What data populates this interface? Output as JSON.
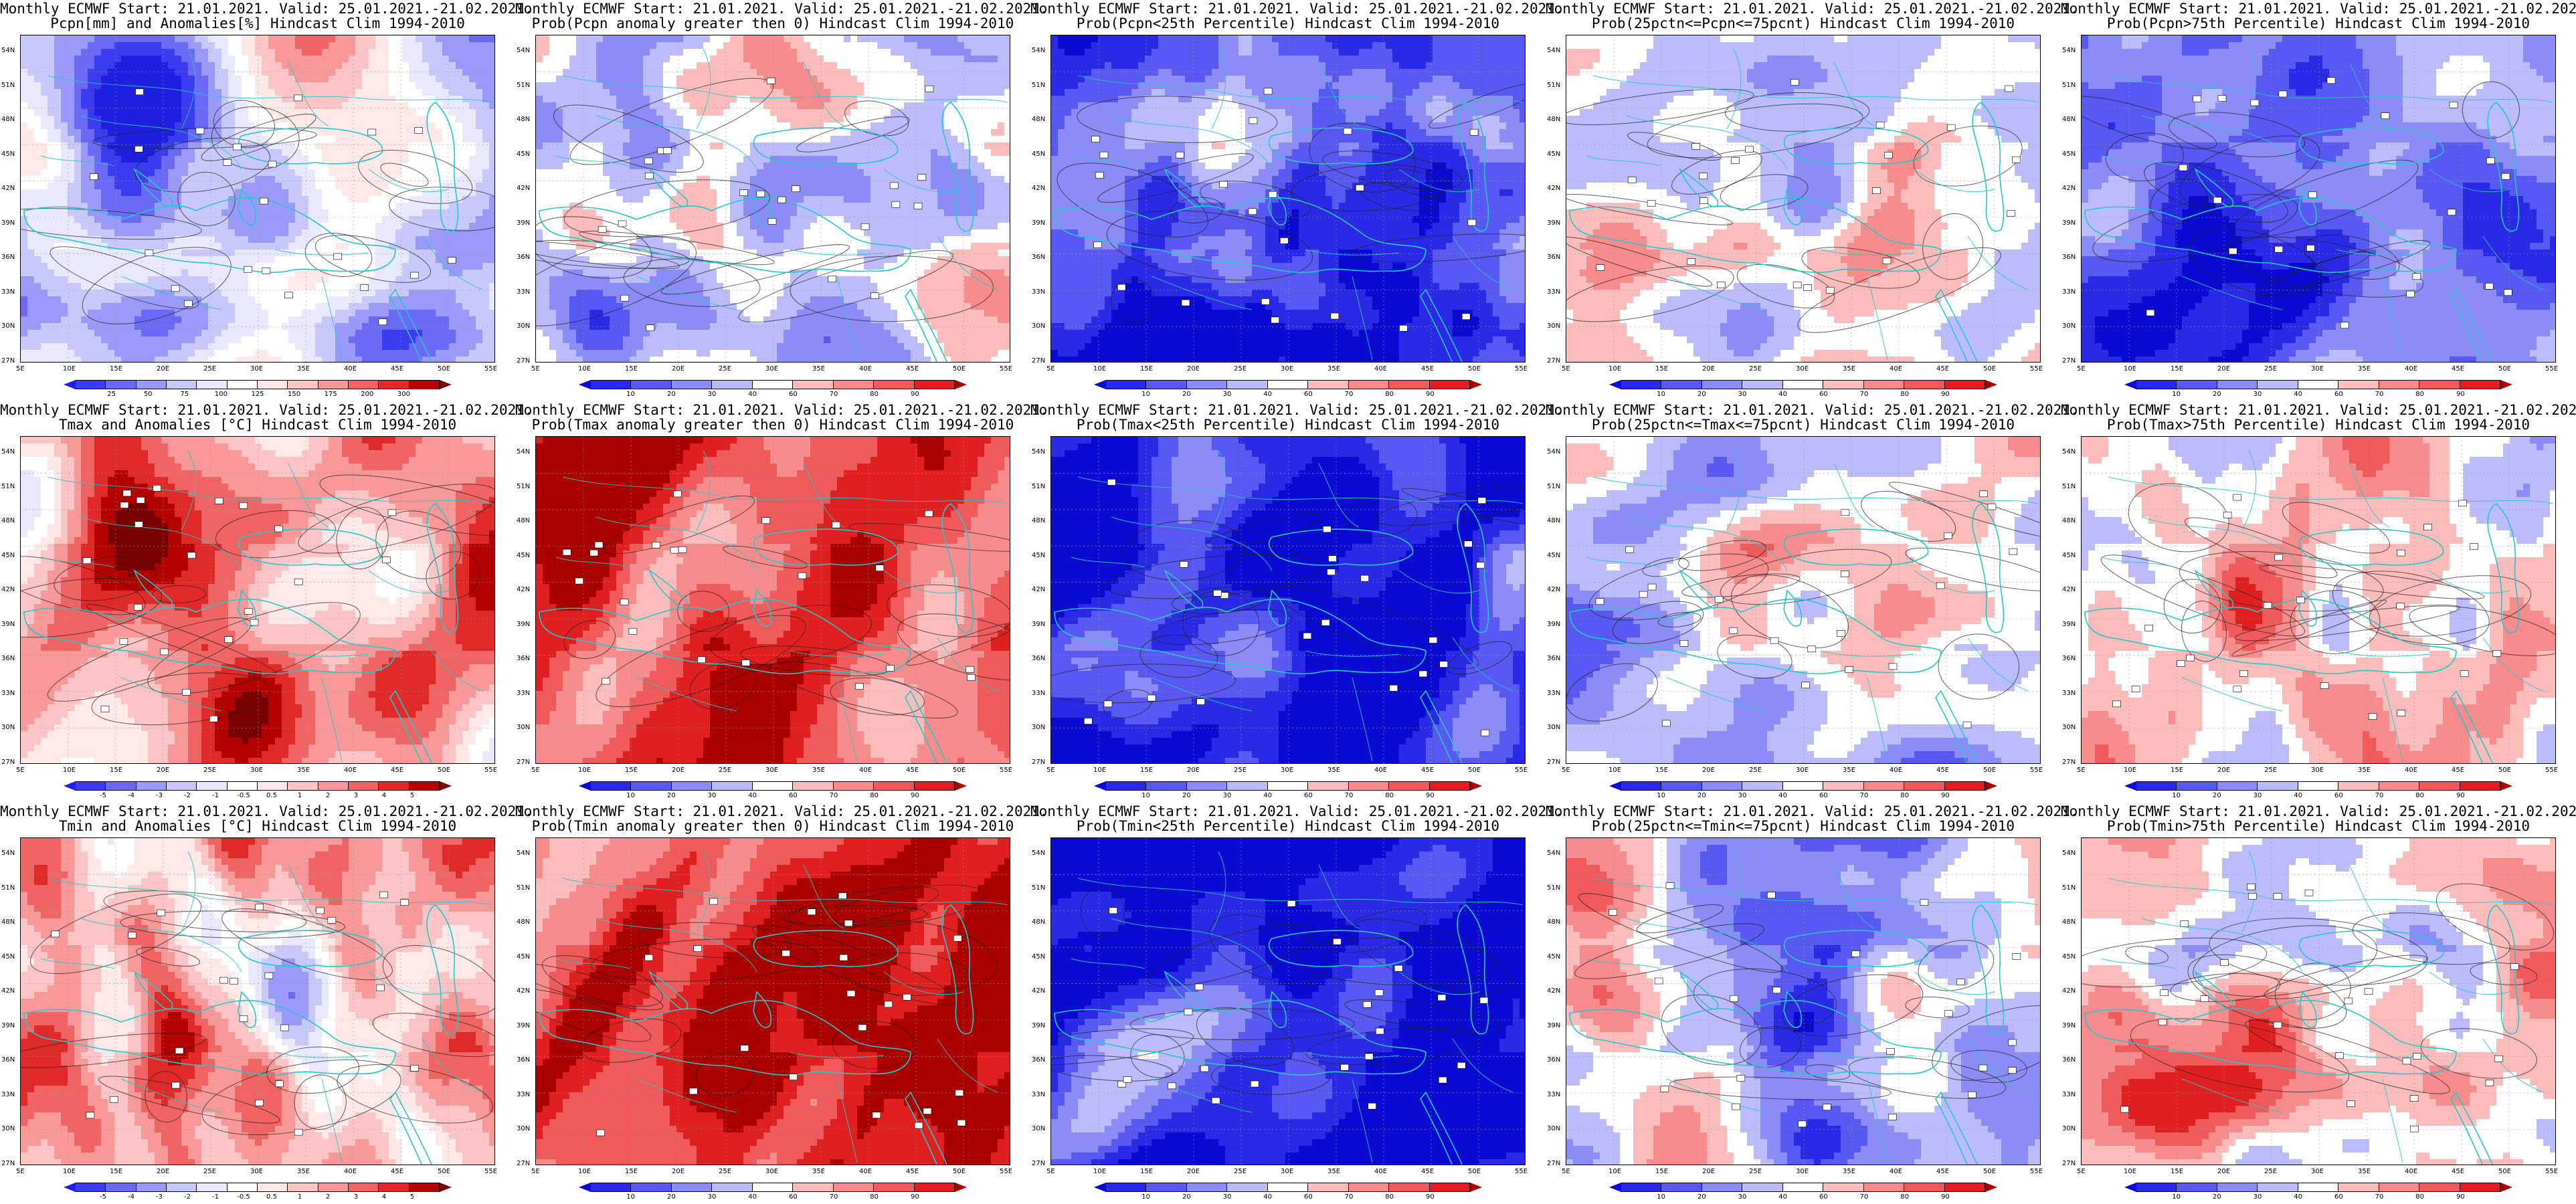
{
  "title_line1": "Monthly ECMWF Start: 21.01.2021. Valid: 25.01.2021.-21.02.2021.",
  "lat_labels": [
    "54N",
    "51N",
    "48N",
    "45N",
    "42N",
    "39N",
    "36N",
    "33N",
    "30N",
    "27N"
  ],
  "lon_labels": [
    "5E",
    "10E",
    "15E",
    "20E",
    "25E",
    "30E",
    "35E",
    "40E",
    "45E",
    "50E",
    "55E"
  ],
  "colors": {
    "anomaly": [
      "#1f1fe0",
      "#3b3bf0",
      "#6a6af6",
      "#9a9afa",
      "#c8c8fc",
      "#e8e8fe",
      "#ffffff",
      "#fee8e8",
      "#fcc4c4",
      "#f89898",
      "#f06464",
      "#e02a2a",
      "#b40000",
      "#780000"
    ],
    "probability": [
      "#0a0ad2",
      "#2a2ae6",
      "#5858f2",
      "#8c8cf8",
      "#bcbcfc",
      "#ffffff",
      "#fcbcbc",
      "#f88c8c",
      "#f05a5a",
      "#e02020",
      "#aa0000"
    ],
    "coast": "#24c8c8",
    "contour": "#202020"
  },
  "panels": [
    {
      "line2": "Pcpn[mm] and Anomalies[%] Hindcast Clim 1994-2010",
      "scale": "anomaly",
      "bias": -0.3,
      "ticks": [
        "25",
        "50",
        "75",
        "100",
        "125",
        "150",
        "175",
        "200",
        "300"
      ]
    },
    {
      "line2": "Prob(Pcpn anomaly greater then 0) Hindcast Clim 1994-2010",
      "scale": "probability",
      "bias": -0.1,
      "ticks": [
        "10",
        "20",
        "30",
        "40",
        "60",
        "70",
        "80",
        "90"
      ]
    },
    {
      "line2": "Prob(Pcpn<25th Percentile) Hindcast Clim 1994-2010",
      "scale": "probability",
      "bias": -0.6,
      "ticks": [
        "10",
        "20",
        "30",
        "40",
        "60",
        "70",
        "80",
        "90"
      ]
    },
    {
      "line2": "Prob(25pctn<=Pcpn<=75pcnt) Hindcast Clim 1994-2010",
      "scale": "probability",
      "bias": 0.05,
      "ticks": [
        "10",
        "20",
        "30",
        "40",
        "60",
        "70",
        "80",
        "90"
      ]
    },
    {
      "line2": "Prob(Pcpn>75th Percentile) Hindcast Clim 1994-2010",
      "scale": "probability",
      "bias": -0.45,
      "ticks": [
        "10",
        "20",
        "30",
        "40",
        "60",
        "70",
        "80",
        "90"
      ]
    },
    {
      "line2": "Tmax and Anomalies [°C] Hindcast Clim 1994-2010",
      "scale": "anomaly",
      "bias": 0.35,
      "ticks": [
        "-5",
        "-4",
        "-3",
        "-2",
        "-1",
        "-0.5",
        "0.5",
        "1",
        "2",
        "3",
        "4",
        "5"
      ]
    },
    {
      "line2": "Prob(Tmax anomaly greater then 0) Hindcast Clim 1994-2010",
      "scale": "probability",
      "bias": 0.55,
      "ticks": [
        "10",
        "20",
        "30",
        "40",
        "60",
        "70",
        "80",
        "90"
      ]
    },
    {
      "line2": "Prob(Tmax<25th Percentile) Hindcast Clim 1994-2010",
      "scale": "probability",
      "bias": -0.8,
      "ticks": [
        "10",
        "20",
        "30",
        "40",
        "60",
        "70",
        "80",
        "90"
      ]
    },
    {
      "line2": "Prob(25pctn<=Tmax<=75pcnt) Hindcast Clim 1994-2010",
      "scale": "probability",
      "bias": -0.1,
      "ticks": [
        "10",
        "20",
        "30",
        "40",
        "60",
        "70",
        "80",
        "90"
      ]
    },
    {
      "line2": "Prob(Tmax>75th Percentile) Hindcast Clim 1994-2010",
      "scale": "probability",
      "bias": 0.1,
      "ticks": [
        "10",
        "20",
        "30",
        "40",
        "60",
        "70",
        "80",
        "90"
      ]
    },
    {
      "line2": "Tmin and Anomalies [°C] Hindcast Clim 1994-2010",
      "scale": "anomaly",
      "bias": 0.3,
      "ticks": [
        "-5",
        "-4",
        "-3",
        "-2",
        "-1",
        "-0.5",
        "0.5",
        "1",
        "2",
        "3",
        "4",
        "5"
      ]
    },
    {
      "line2": "Prob(Tmin anomaly greater then 0) Hindcast Clim 1994-2010",
      "scale": "probability",
      "bias": 0.6,
      "ticks": [
        "10",
        "20",
        "30",
        "40",
        "60",
        "70",
        "80",
        "90"
      ]
    },
    {
      "line2": "Prob(Tmin<25th Percentile) Hindcast Clim 1994-2010",
      "scale": "probability",
      "bias": -0.85,
      "ticks": [
        "10",
        "20",
        "30",
        "40",
        "60",
        "70",
        "80",
        "90"
      ]
    },
    {
      "line2": "Prob(25pctn<=Tmin<=75pcnt) Hindcast Clim 1994-2010",
      "scale": "probability",
      "bias": -0.15,
      "ticks": [
        "10",
        "20",
        "30",
        "40",
        "60",
        "70",
        "80",
        "90"
      ]
    },
    {
      "line2": "Prob(Tmin>75th Percentile) Hindcast Clim 1994-2010",
      "scale": "probability",
      "bias": 0.15,
      "ticks": [
        "10",
        "20",
        "30",
        "40",
        "60",
        "70",
        "80",
        "90"
      ]
    }
  ]
}
